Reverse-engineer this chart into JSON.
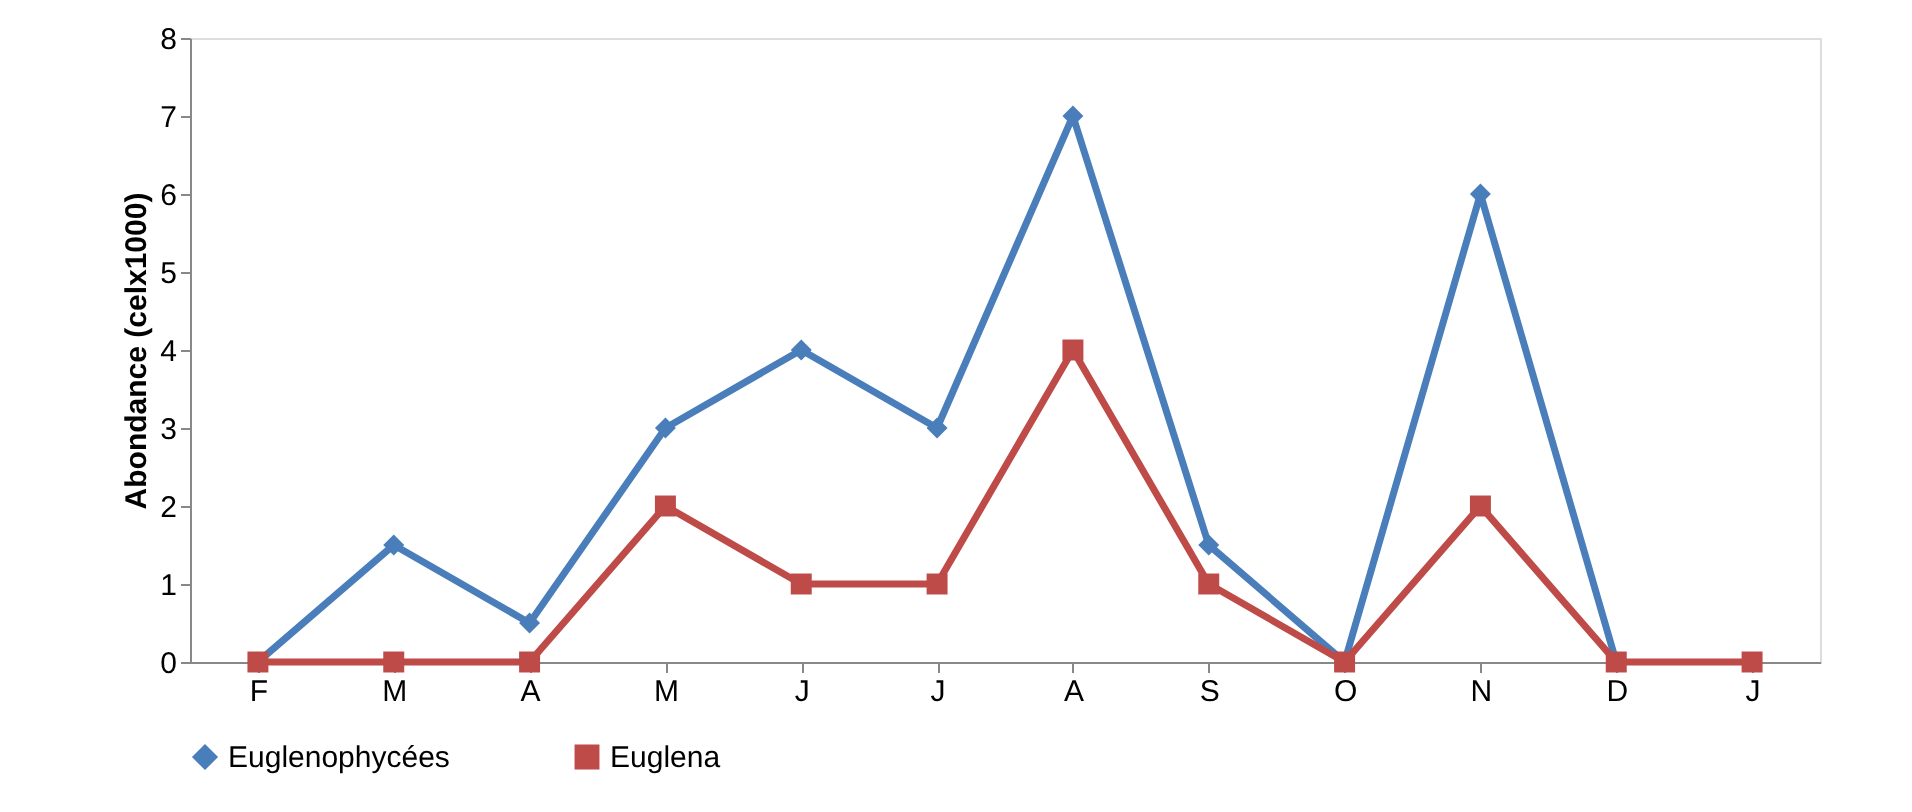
{
  "chart_data": {
    "type": "line",
    "ylabel": "Abondance (celx1000)",
    "categories": [
      "F",
      "M",
      "A",
      "M",
      "J",
      "J",
      "A",
      "S",
      "O",
      "N",
      "D",
      "J"
    ],
    "series": [
      {
        "name": "Euglenophycées",
        "color": "#4a7ebb",
        "marker": "diamond",
        "values": [
          0,
          1.5,
          0.5,
          3,
          4,
          3,
          7,
          1.5,
          0,
          6,
          0,
          null
        ]
      },
      {
        "name": "Euglena",
        "color": "#be4b48",
        "marker": "square",
        "values": [
          0,
          0,
          0,
          2,
          1,
          1,
          4,
          1,
          0,
          2,
          0,
          0
        ]
      }
    ],
    "ylim": [
      0,
      8
    ],
    "yticks": [
      0,
      1,
      2,
      3,
      4,
      5,
      6,
      7,
      8
    ],
    "grid": false,
    "legend": "bottom"
  }
}
